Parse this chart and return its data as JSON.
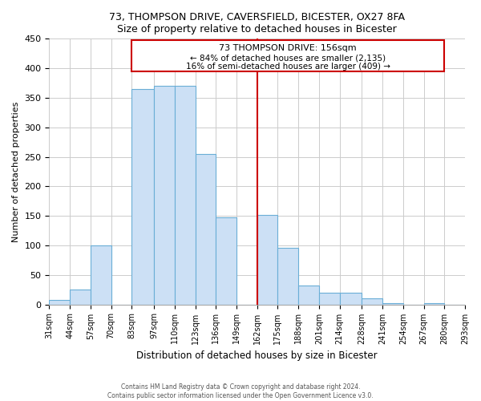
{
  "title": "73, THOMPSON DRIVE, CAVERSFIELD, BICESTER, OX27 8FA",
  "subtitle": "Size of property relative to detached houses in Bicester",
  "xlabel": "Distribution of detached houses by size in Bicester",
  "ylabel": "Number of detached properties",
  "bins": [
    31,
    44,
    57,
    70,
    83,
    97,
    110,
    123,
    136,
    149,
    162,
    175,
    188,
    201,
    214,
    228,
    241,
    254,
    267,
    280,
    293
  ],
  "bin_labels": [
    "31sqm",
    "44sqm",
    "57sqm",
    "70sqm",
    "83sqm",
    "97sqm",
    "110sqm",
    "123sqm",
    "136sqm",
    "149sqm",
    "162sqm",
    "175sqm",
    "188sqm",
    "201sqm",
    "214sqm",
    "228sqm",
    "241sqm",
    "254sqm",
    "267sqm",
    "280sqm",
    "293sqm"
  ],
  "counts": [
    8,
    25,
    100,
    0,
    365,
    370,
    370,
    255,
    147,
    0,
    152,
    96,
    32,
    20,
    20,
    10,
    2,
    0,
    2,
    0
  ],
  "bar_color": "#cce0f5",
  "bar_edge_color": "#6aaed6",
  "vline_x": 162,
  "marker_label": "73 THOMPSON DRIVE: 156sqm",
  "annotation_line1": "← 84% of detached houses are smaller (2,135)",
  "annotation_line2": "16% of semi-detached houses are larger (409) →",
  "vline_color": "#cc0000",
  "box_edge_color": "#cc0000",
  "ylim": [
    0,
    450
  ],
  "yticks": [
    0,
    50,
    100,
    150,
    200,
    250,
    300,
    350,
    400,
    450
  ],
  "footer_line1": "Contains HM Land Registry data © Crown copyright and database right 2024.",
  "footer_line2": "Contains public sector information licensed under the Open Government Licence v3.0."
}
